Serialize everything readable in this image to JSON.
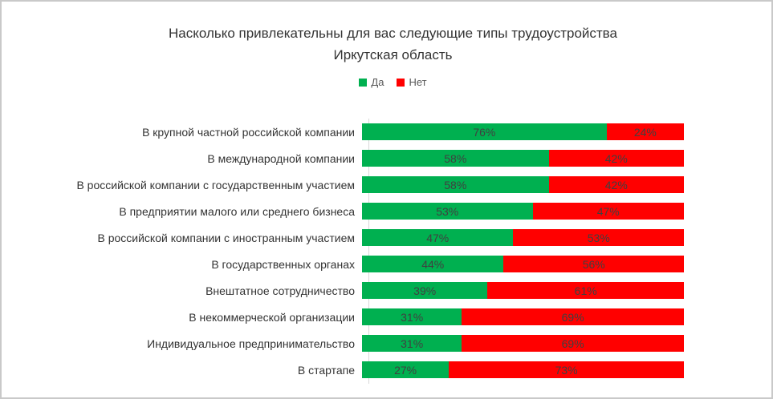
{
  "frame": {
    "background": "#FFFFFF",
    "border_color": "#C9C9C9"
  },
  "title": {
    "line1": "Насколько привлекательны для вас следующие типы трудоустройства",
    "line2": "Иркутская область"
  },
  "chart_data": {
    "type": "bar",
    "orientation": "horizontal",
    "stacked": true,
    "stacked_total": 100,
    "title": "Насколько привлекательны для вас следующие типы трудоустройства Иркутская область",
    "legend_position": "top",
    "grid": false,
    "value_suffix": "%",
    "axis_line_color": "#D9D9D9",
    "label_color": "#404040",
    "categories": [
      "В крупной частной российской компании",
      "В международной компании",
      "В российской компании с государственным участием",
      "В предприятии малого или среднего бизнеса",
      "В российской компании с иностранным участием",
      "В государственных органах",
      "Внештатное сотрудничество",
      "В некоммерческой организации",
      "Индивидуальное предпринимательство",
      "В стартапе"
    ],
    "series": [
      {
        "name": "Да",
        "color": "#00B050",
        "values": [
          76,
          58,
          58,
          53,
          47,
          44,
          39,
          31,
          31,
          27
        ]
      },
      {
        "name": "Нет",
        "color": "#FF0000",
        "values": [
          24,
          42,
          42,
          47,
          53,
          56,
          61,
          69,
          69,
          73
        ]
      }
    ]
  }
}
